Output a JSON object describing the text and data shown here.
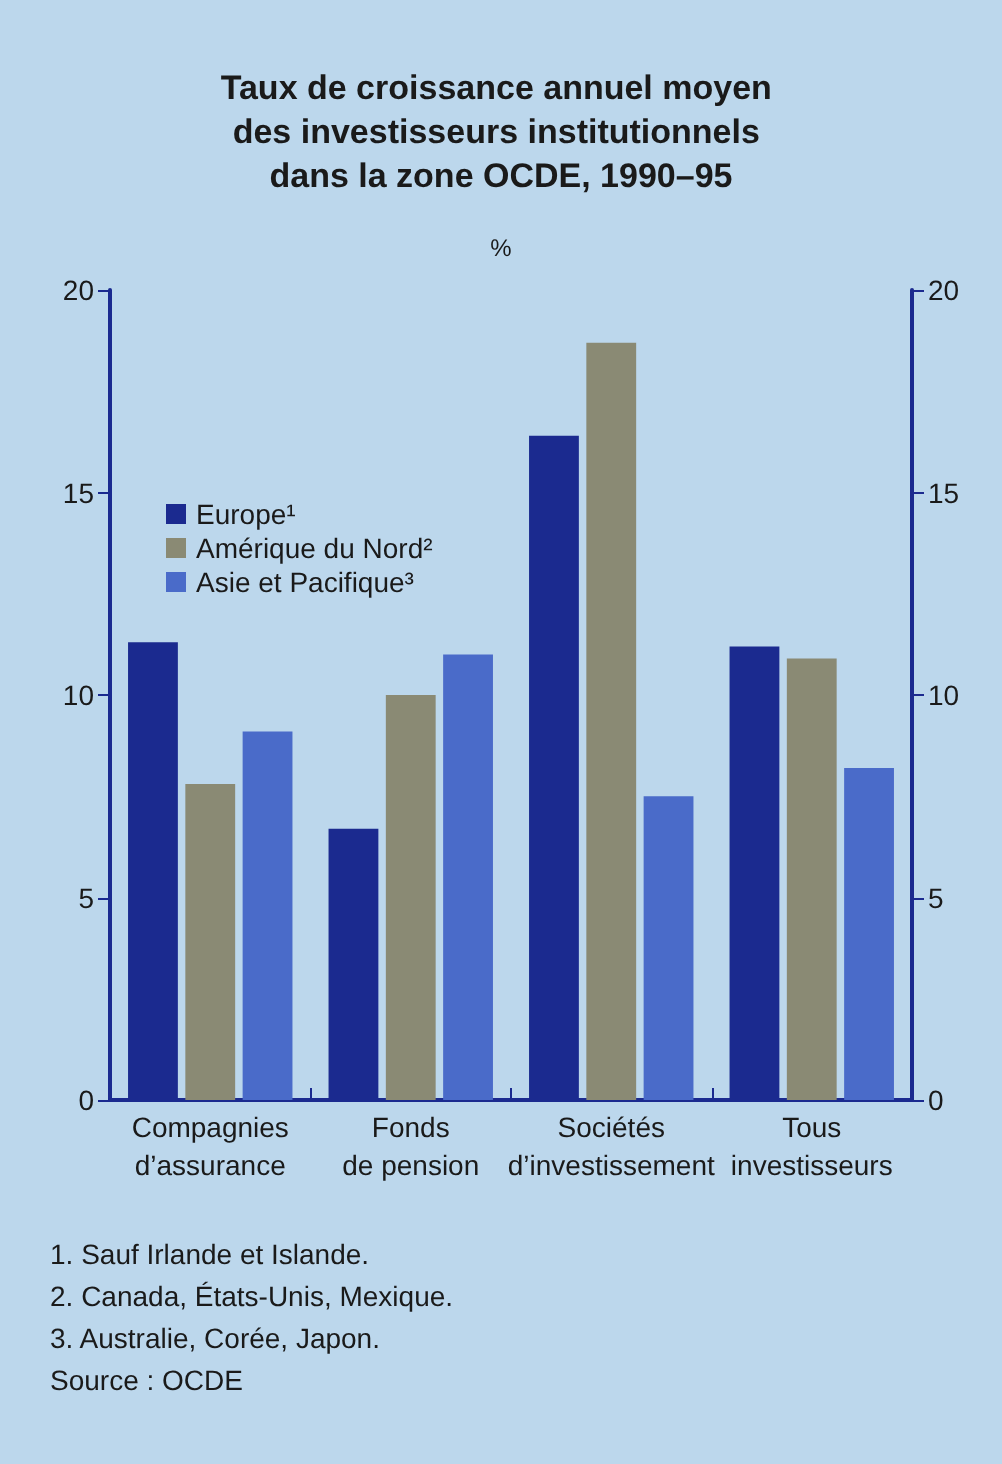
{
  "chart_data": {
    "type": "bar",
    "title": "Taux de croissance annuel moyen des investisseurs institutionnels dans la zone OCDE, 1990–95",
    "ylabel": "%",
    "categories": [
      "Compagnies\nd’assurance",
      "Fonds\nde pension",
      "Sociétés\nd’investissement",
      "Tous\ninvestisseurs"
    ],
    "series": [
      {
        "name": "Europe¹",
        "color": "#1b2a8f",
        "values": [
          11.3,
          6.7,
          16.4,
          11.2
        ]
      },
      {
        "name": "Amérique du Nord²",
        "color": "#8a8a74",
        "values": [
          7.8,
          10.0,
          18.7,
          10.9
        ]
      },
      {
        "name": "Asie et Pacifique³",
        "color": "#4a6bc9",
        "values": [
          9.1,
          11.0,
          7.5,
          8.2
        ]
      }
    ],
    "ylim": [
      0,
      20
    ],
    "yticks": [
      0,
      5,
      10,
      15,
      20
    ],
    "y2lim": [
      0,
      20
    ],
    "y2ticks": [
      0,
      5,
      10,
      15,
      20
    ],
    "grid": false,
    "legend": "top left",
    "annotations": [
      "1. Sauf Irlande et Islande.",
      "2. Canada, États-Unis, Mexique.",
      "3. Australie, Corée, Japon.",
      "Source : OCDE"
    ]
  }
}
